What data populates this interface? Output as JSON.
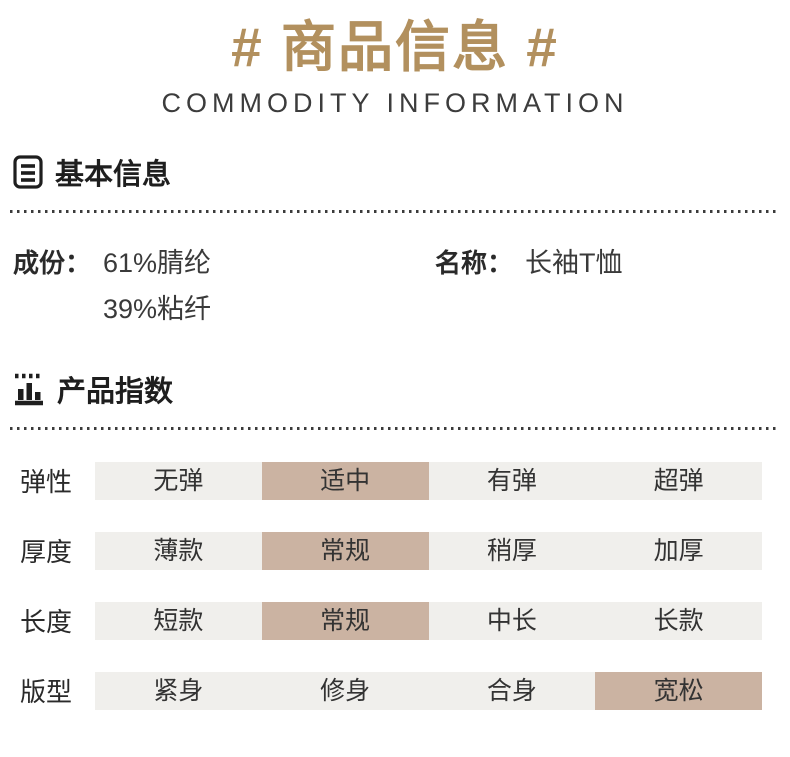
{
  "header": {
    "title": "# 商品信息 #",
    "subtitle": "COMMODITY INFORMATION"
  },
  "sections": {
    "basic_info": {
      "title": "基本信息",
      "icon": "document-list-icon",
      "fields": [
        {
          "label": "成份：",
          "values": [
            "61%腈纶",
            "39%粘纤"
          ]
        },
        {
          "label": "名称：",
          "values": [
            "长袖T恤"
          ]
        }
      ]
    },
    "product_index": {
      "title": "产品指数",
      "icon": "bar-chart-icon",
      "rows": [
        {
          "label": "弹性",
          "options": [
            "无弹",
            "适中",
            "有弹",
            "超弹"
          ],
          "selected": 1
        },
        {
          "label": "厚度",
          "options": [
            "薄款",
            "常规",
            "稍厚",
            "加厚"
          ],
          "selected": 1
        },
        {
          "label": "长度",
          "options": [
            "短款",
            "常规",
            "中长",
            "长款"
          ],
          "selected": 1
        },
        {
          "label": "版型",
          "options": [
            "紧身",
            "修身",
            "合身",
            "宽松"
          ],
          "selected": 3
        }
      ]
    }
  },
  "colors": {
    "accent_gold": "#b2905e",
    "cell_background": "#f0efec",
    "highlight_background": "#cbb3a2",
    "text_dark": "#1e1e1e"
  }
}
